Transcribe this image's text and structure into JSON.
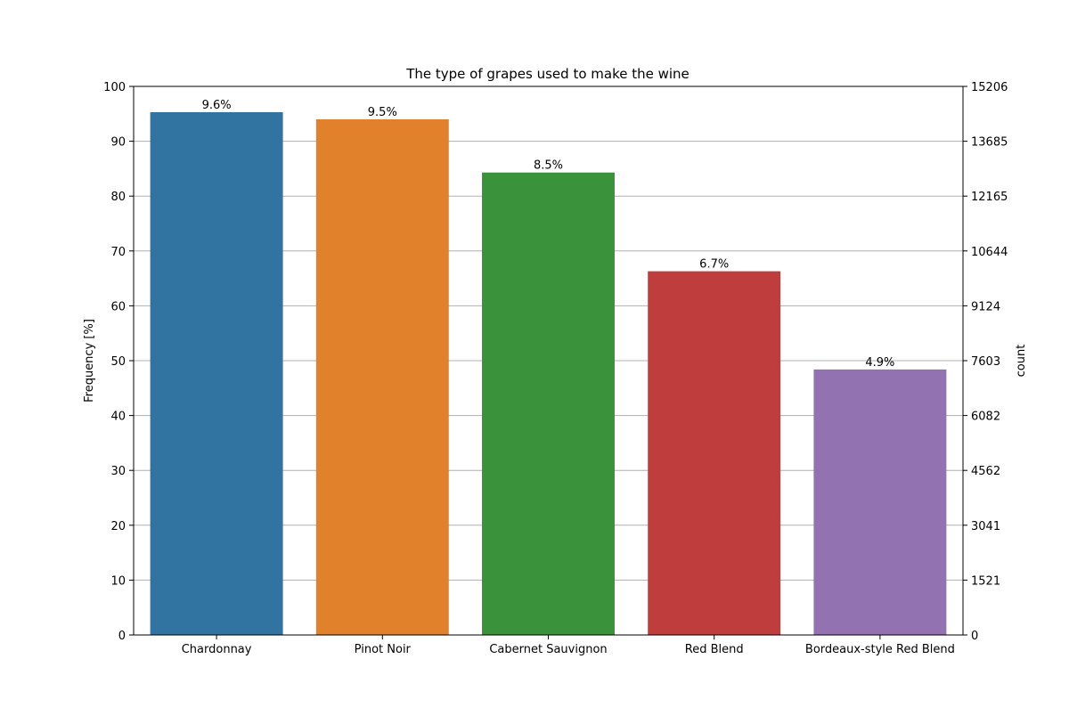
{
  "chart_data": {
    "type": "bar",
    "title": "The type of grapes used to make the wine",
    "xlabel": "",
    "ylabel": "Frequency [%]",
    "y2label": "count",
    "categories": [
      "Chardonnay",
      "Pinot Noir",
      "Cabernet Sauvignon",
      "Red Blend",
      "Bordeaux-style Red Blend"
    ],
    "values": [
      95.3,
      94.0,
      84.3,
      66.3,
      48.4
    ],
    "bar_labels": [
      "9.6%",
      "9.5%",
      "8.5%",
      "6.7%",
      "4.9%"
    ],
    "colors": [
      "#3274a1",
      "#e1812c",
      "#3a923a",
      "#c03d3e",
      "#9372b2"
    ],
    "ylim": [
      0,
      100
    ],
    "yticks": [
      0,
      10,
      20,
      30,
      40,
      50,
      60,
      70,
      80,
      90,
      100
    ],
    "y2ticks": [
      "0",
      "1521",
      "3041",
      "4562",
      "6082",
      "7603",
      "9124",
      "10644",
      "12165",
      "13685",
      "15206"
    ],
    "grid": "horizontal",
    "grid_color": "#b0b0b0"
  }
}
